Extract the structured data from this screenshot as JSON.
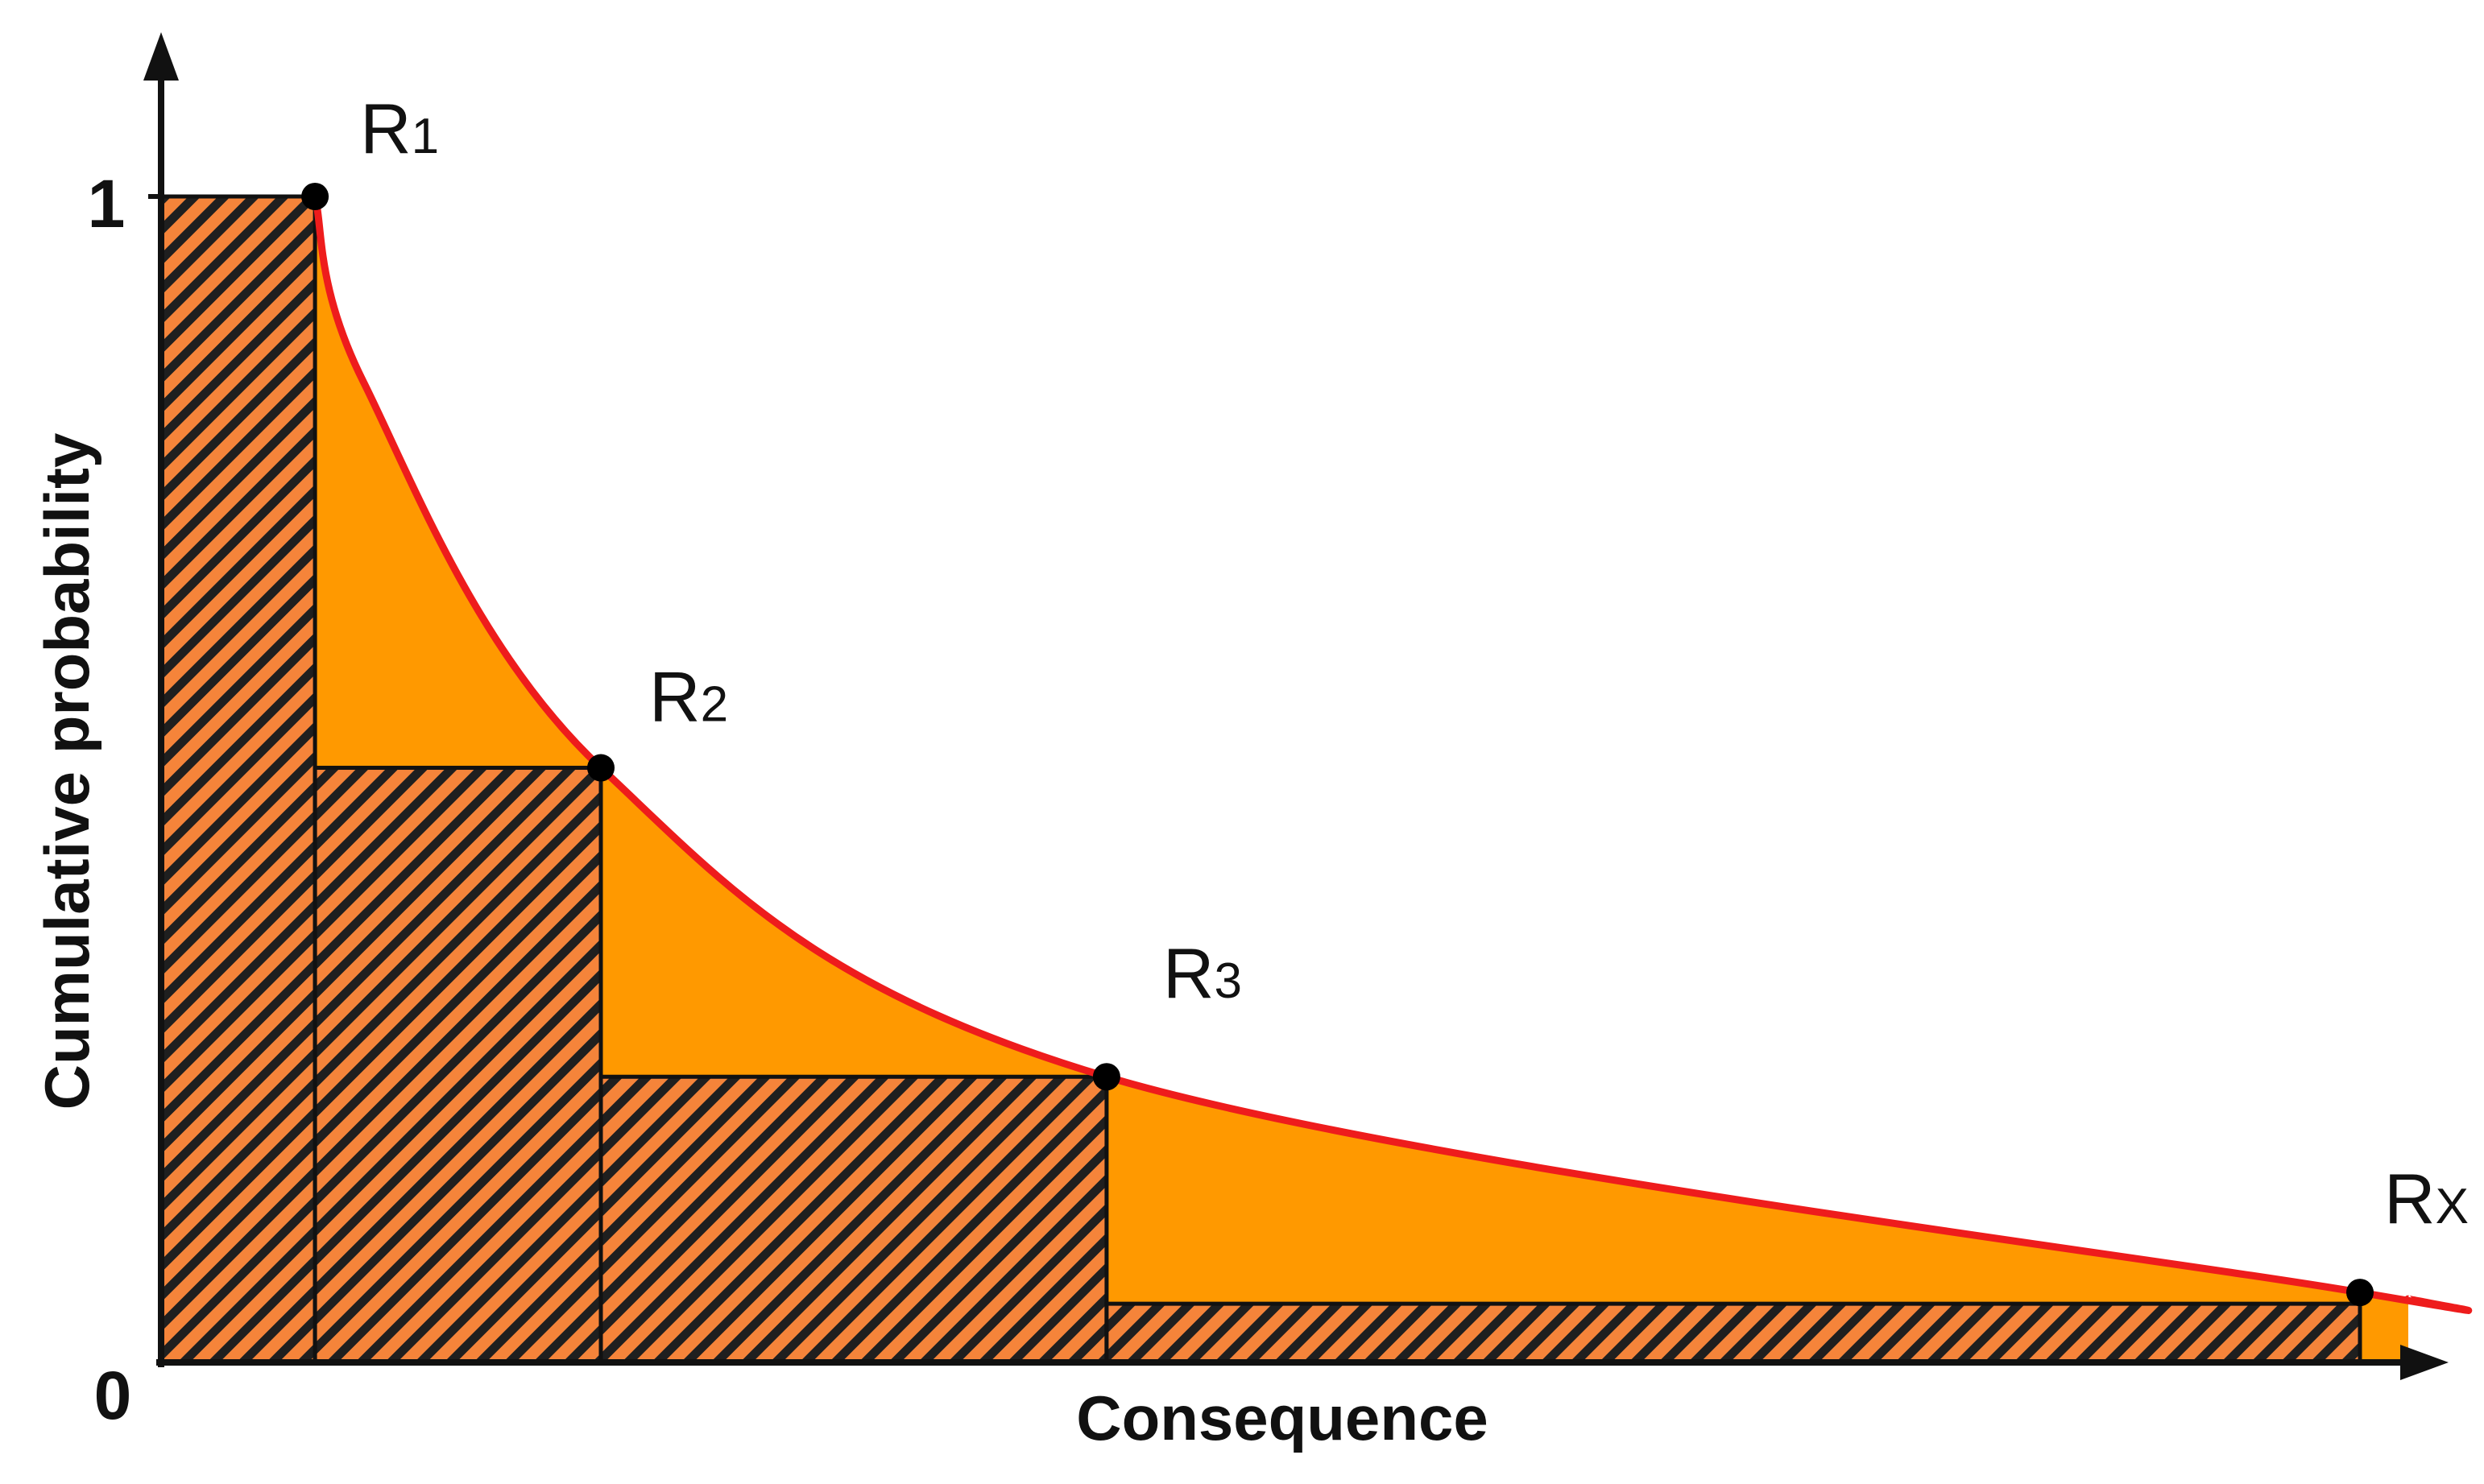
{
  "chart_data": {
    "type": "area",
    "xlabel": "Consequence",
    "ylabel": "Cumulative probability",
    "y_ticks": [
      "0",
      "1"
    ],
    "ylim": [
      0,
      1
    ],
    "points": [
      {
        "label_main": "R",
        "label_sub": "1",
        "x": 0.07,
        "y": 1.0
      },
      {
        "label_main": "R",
        "label_sub": "2",
        "x": 0.2,
        "y": 0.51
      },
      {
        "label_main": "R",
        "label_sub": "3",
        "x": 0.43,
        "y": 0.245
      },
      {
        "label_main": "R",
        "label_sub": "X",
        "x": 1.0,
        "y": 0.06
      }
    ],
    "series": [
      {
        "values_type": "curve",
        "description_color": "red"
      }
    ],
    "colors": {
      "curve": "#ee1c1c",
      "fill": "#ff9900",
      "hatch_bg": "#f5843a",
      "hatch_line": "#1f1f1f",
      "outline": "#111111",
      "axis": "#111111"
    }
  }
}
